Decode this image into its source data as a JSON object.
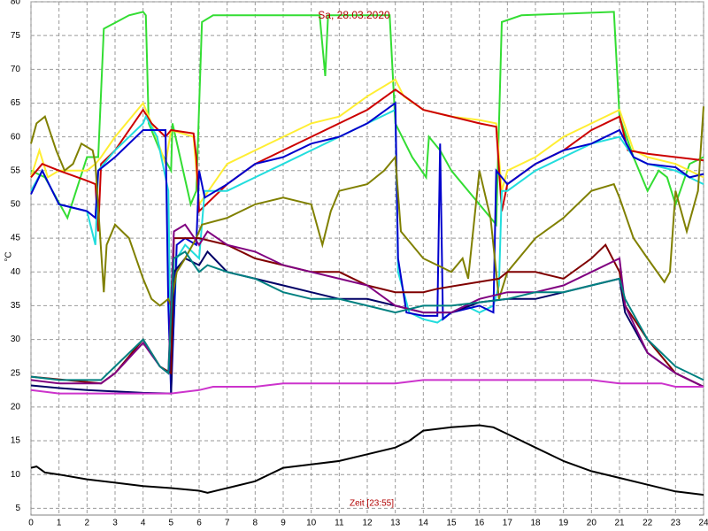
{
  "chart_data": {
    "type": "line",
    "title": "Sa, 28.03.2020",
    "x_label": "Zeit [23:55]",
    "y_label": "°C",
    "xlim": [
      0,
      24
    ],
    "xticks": [
      0,
      1,
      2,
      3,
      4,
      5,
      6,
      7,
      8,
      9,
      10,
      11,
      12,
      13,
      14,
      15,
      16,
      17,
      18,
      19,
      20,
      21,
      22,
      23,
      24
    ],
    "ylim": [
      4,
      80
    ],
    "yticks": [
      5,
      10,
      15,
      20,
      25,
      30,
      35,
      40,
      45,
      50,
      55,
      60,
      65,
      70,
      75,
      80
    ],
    "grid": true,
    "series": [
      {
        "color": "#33dd33",
        "x": [
          0,
          0.5,
          1.3,
          2,
          2.4,
          2.6,
          3.5,
          4,
          4.1,
          4.2,
          4.6,
          5,
          5.05,
          5.7,
          5.9,
          6.1,
          6.5,
          10.3,
          10.5,
          10.6,
          12.8,
          13,
          13.6,
          14.1,
          14.2,
          14.6,
          15,
          16,
          16.6,
          16.8,
          17.5,
          20.8,
          21,
          21.5,
          22,
          22.4,
          22.7,
          23,
          23.5,
          24
        ],
        "values": [
          55,
          54,
          48,
          57,
          57,
          76,
          78,
          78.5,
          78,
          62,
          58,
          55,
          62,
          50,
          52,
          77,
          78,
          78,
          69,
          78,
          78,
          62,
          57,
          54,
          60,
          58,
          55,
          50,
          47,
          77,
          78,
          78.5,
          63,
          57,
          52,
          55,
          54,
          50,
          56,
          57
        ]
      },
      {
        "color": "#ffee33",
        "x": [
          0,
          0.3,
          0.6,
          1,
          2,
          2.3,
          2.5,
          3,
          4,
          4.3,
          4.8,
          5,
          5.8,
          6,
          7,
          8,
          9,
          10,
          11,
          12,
          13,
          13.3,
          14,
          15,
          16,
          16.6,
          16.8,
          17,
          18,
          19,
          20,
          21,
          21.5,
          22,
          23,
          24
        ],
        "values": [
          54,
          58,
          54,
          55,
          55,
          56,
          57,
          60,
          65,
          62,
          56,
          61,
          60,
          50,
          56,
          58,
          60,
          62,
          63,
          66,
          68.5,
          66,
          64,
          63,
          62.5,
          62,
          52,
          55,
          57,
          60,
          62,
          64,
          58,
          57,
          56,
          54
        ]
      },
      {
        "color": "#cc0000",
        "x": [
          0,
          0.4,
          1,
          2,
          2.3,
          2.4,
          2.5,
          3,
          4,
          4.3,
          4.8,
          5,
          5.8,
          5.9,
          6,
          7,
          8,
          9,
          10,
          11,
          12,
          13,
          14,
          15,
          16,
          16.6,
          16.8,
          17,
          18,
          19,
          20,
          21,
          21.3,
          22,
          23,
          24
        ],
        "values": [
          54,
          56,
          55,
          53.5,
          53,
          46,
          56,
          58,
          64,
          62,
          60,
          61,
          60.5,
          57,
          49,
          53,
          56,
          58,
          60,
          62,
          64,
          67,
          64,
          63,
          62,
          61.5,
          49,
          53,
          56,
          58,
          61,
          63,
          58,
          57.5,
          57,
          56.5
        ]
      },
      {
        "color": "#22dddd",
        "x": [
          0,
          0.4,
          1,
          2,
          2.3,
          2.4,
          3,
          4,
          4.1,
          4.5,
          4.9,
          5,
          5.2,
          5.5,
          6,
          6.2,
          7,
          8,
          9,
          10,
          11,
          12,
          13,
          13.1,
          13.5,
          14,
          14.5,
          15,
          15.5,
          16,
          16.5,
          16.7,
          16.8,
          17,
          18,
          19,
          20,
          21,
          21.5,
          22,
          23,
          24
        ],
        "values": [
          52,
          55,
          50,
          49,
          44,
          55,
          58,
          62,
          63,
          60,
          52,
          24,
          42,
          44,
          42,
          52,
          52,
          54,
          56,
          58,
          60,
          62,
          64,
          40,
          34,
          33,
          32.5,
          34,
          35,
          34,
          35,
          38,
          52,
          52,
          55,
          57,
          59,
          60,
          57,
          56,
          55,
          53
        ]
      },
      {
        "color": "#0000cc",
        "x": [
          0,
          0.4,
          1,
          2,
          2.3,
          2.4,
          3,
          4,
          4.5,
          4.8,
          4.9,
          5,
          5.2,
          5.5,
          5.9,
          6,
          6.2,
          7,
          8,
          9,
          10,
          11,
          12,
          13,
          13.1,
          13.4,
          14,
          14.5,
          14.6,
          14.7,
          15,
          16,
          16.5,
          16.6,
          16.8,
          17,
          18,
          19,
          20,
          21,
          21.5,
          22,
          23,
          23.5,
          24
        ],
        "values": [
          51.5,
          55,
          50,
          49,
          48,
          55,
          57,
          61,
          61,
          61,
          35,
          22,
          44,
          45,
          44,
          55,
          51,
          53,
          56,
          57,
          59,
          60,
          62,
          65,
          42,
          34,
          33.5,
          33.5,
          59,
          33,
          34,
          35,
          34,
          55,
          54,
          53,
          56,
          58,
          59,
          61,
          57,
          56,
          55.5,
          54,
          54.5
        ]
      },
      {
        "color": "#000066",
        "x": [
          0,
          1,
          2,
          3,
          4,
          5,
          5.1,
          5.5,
          6,
          6.3,
          7,
          8,
          9,
          10,
          11,
          12,
          13,
          14,
          15,
          16,
          17,
          18,
          19,
          20,
          21,
          21.2,
          22,
          23,
          24
        ],
        "values": [
          23.2,
          22.8,
          22.5,
          22.3,
          22.1,
          22,
          40,
          42,
          41,
          43,
          40,
          39,
          38,
          37,
          36,
          36,
          35,
          34,
          34,
          35.5,
          36,
          36,
          37,
          38,
          39,
          34,
          28,
          25,
          23
        ]
      },
      {
        "color": "#808000",
        "x": [
          0,
          0.2,
          0.5,
          0.9,
          1.2,
          1.5,
          1.8,
          2.2,
          2.3,
          2.6,
          2.7,
          3,
          3.5,
          4,
          4.3,
          4.6,
          4.9,
          5,
          5.2,
          5.5,
          5.9,
          6.1,
          7,
          8,
          9,
          10,
          10.4,
          10.7,
          11,
          12,
          12.6,
          13,
          13.2,
          14,
          14.5,
          15,
          15.4,
          15.6,
          16,
          16.4,
          16.7,
          17,
          18,
          19,
          20,
          20.8,
          21,
          21.5,
          22,
          22.6,
          22.8,
          23,
          23.4,
          23.8,
          24
        ],
        "values": [
          59,
          62,
          63,
          58,
          55,
          56,
          59,
          58,
          56,
          37,
          44,
          47,
          45,
          39,
          36,
          35,
          36,
          35,
          40,
          42,
          45,
          47,
          48,
          50,
          51,
          50,
          44,
          49,
          52,
          53,
          55,
          57,
          46,
          42,
          41,
          40,
          42,
          39,
          55,
          48,
          36,
          40,
          45,
          48,
          52,
          53,
          51,
          45,
          42,
          38.5,
          40,
          52,
          46,
          52,
          64.5
        ]
      },
      {
        "color": "#800000",
        "x": [
          0,
          2.5,
          3,
          4,
          4.6,
          5,
          5.1,
          6,
          7,
          8,
          9,
          10,
          11,
          12,
          13,
          14,
          14.5,
          16.7,
          17,
          18,
          19,
          20,
          20.5,
          21,
          21.2,
          22,
          23,
          24
        ],
        "values": [
          24.5,
          23.5,
          25,
          30,
          26,
          25,
          45,
          45,
          44,
          42,
          41,
          40,
          40,
          38,
          37,
          37,
          37.5,
          39,
          40,
          40,
          39,
          42,
          44,
          40,
          35,
          30,
          25,
          23
        ]
      },
      {
        "color": "#800080",
        "x": [
          0,
          1,
          2.5,
          3,
          4,
          4.6,
          4.9,
          5.1,
          5.5,
          6,
          6.3,
          7,
          8,
          9,
          10,
          11,
          12,
          13,
          14,
          15,
          16,
          17,
          18,
          19,
          20,
          21,
          21.2,
          22,
          23,
          24
        ],
        "values": [
          24,
          23.5,
          23.5,
          25,
          29.5,
          26,
          25,
          46,
          47,
          44,
          46,
          44,
          43,
          41,
          40,
          39,
          38,
          35,
          34,
          34,
          36,
          37,
          37,
          38,
          40,
          42,
          35,
          28,
          25,
          23
        ]
      },
      {
        "color": "#008080",
        "x": [
          0,
          1,
          2.5,
          3,
          4,
          4.6,
          4.9,
          5.1,
          5.5,
          6,
          6.3,
          7,
          8,
          9,
          10,
          11,
          12,
          13,
          14,
          15,
          16,
          17,
          18,
          19,
          20,
          21,
          21.2,
          22,
          23,
          24
        ],
        "values": [
          24.5,
          24,
          24,
          26,
          30,
          26,
          25,
          42,
          43,
          40,
          41,
          40,
          39,
          37,
          36,
          36,
          35,
          34,
          35,
          35,
          35.5,
          36,
          37,
          37,
          38,
          39,
          36,
          30,
          26,
          24
        ]
      },
      {
        "color": "#cc33cc",
        "x": [
          0,
          1,
          2,
          3,
          4,
          5,
          6,
          6.5,
          8,
          9,
          13,
          14,
          20,
          21,
          22.5,
          23,
          24
        ],
        "values": [
          22.5,
          22,
          22,
          22,
          22,
          22,
          22.5,
          23,
          23,
          23.5,
          23.5,
          24,
          24,
          23.5,
          23.5,
          23,
          23
        ]
      },
      {
        "color": "#000000",
        "x": [
          0,
          0.2,
          0.5,
          1,
          2,
          3,
          4,
          5,
          6,
          6.3,
          7,
          8,
          9,
          10,
          11,
          12,
          13,
          13.5,
          14,
          15,
          16,
          16.5,
          17,
          18,
          19,
          20,
          21,
          22,
          23,
          24
        ],
        "values": [
          11,
          11.2,
          10.3,
          10,
          9.3,
          8.8,
          8.3,
          8,
          7.6,
          7.3,
          8,
          9,
          11,
          11.5,
          12,
          13,
          14,
          15,
          16.5,
          17,
          17.3,
          17,
          16,
          14,
          12,
          10.5,
          9.5,
          8.5,
          7.5,
          7
        ]
      }
    ]
  }
}
